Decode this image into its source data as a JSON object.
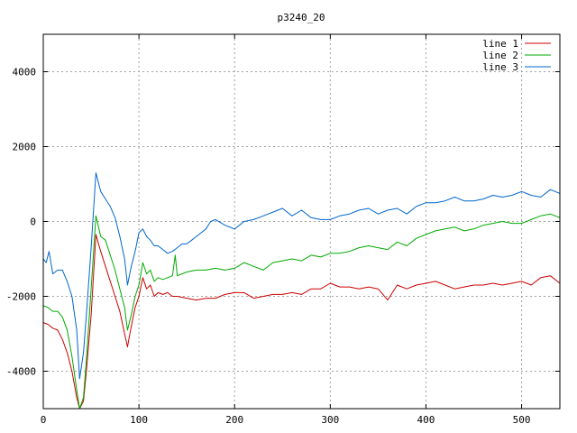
{
  "chart_data": {
    "type": "line",
    "title": "p3240_20",
    "xlabel": "",
    "ylabel": "",
    "xlim": [
      0,
      540
    ],
    "ylim": [
      -5000,
      5000
    ],
    "x_ticks": [
      0,
      100,
      200,
      300,
      400,
      500
    ],
    "y_ticks": [
      -4000,
      -2000,
      0,
      2000,
      4000
    ],
    "x_tick_labels": [
      "0",
      "100",
      "200",
      "300",
      "400",
      "500"
    ],
    "y_tick_labels": [
      "-4000",
      "-2000",
      "0",
      "2000",
      "4000"
    ],
    "grid": true,
    "grid_style": "dotted",
    "legend_position": "top-right",
    "series": [
      {
        "name": "line 1",
        "color": "#cc0000",
        "points": [
          [
            0,
            -2700
          ],
          [
            5,
            -2750
          ],
          [
            10,
            -2850
          ],
          [
            15,
            -2900
          ],
          [
            20,
            -3150
          ],
          [
            25,
            -3500
          ],
          [
            30,
            -4000
          ],
          [
            35,
            -4700
          ],
          [
            38,
            -5000
          ],
          [
            42,
            -4800
          ],
          [
            45,
            -4000
          ],
          [
            50,
            -2500
          ],
          [
            55,
            -350
          ],
          [
            60,
            -800
          ],
          [
            65,
            -1200
          ],
          [
            70,
            -1600
          ],
          [
            75,
            -2000
          ],
          [
            80,
            -2400
          ],
          [
            85,
            -3000
          ],
          [
            88,
            -3350
          ],
          [
            92,
            -2800
          ],
          [
            96,
            -2300
          ],
          [
            100,
            -2000
          ],
          [
            104,
            -1500
          ],
          [
            108,
            -1800
          ],
          [
            112,
            -1700
          ],
          [
            116,
            -2000
          ],
          [
            120,
            -1900
          ],
          [
            125,
            -1950
          ],
          [
            130,
            -1900
          ],
          [
            135,
            -2000
          ],
          [
            140,
            -2000
          ],
          [
            150,
            -2050
          ],
          [
            160,
            -2100
          ],
          [
            170,
            -2050
          ],
          [
            180,
            -2050
          ],
          [
            190,
            -1950
          ],
          [
            200,
            -1900
          ],
          [
            210,
            -1900
          ],
          [
            220,
            -2050
          ],
          [
            230,
            -2000
          ],
          [
            240,
            -1950
          ],
          [
            250,
            -1950
          ],
          [
            260,
            -1900
          ],
          [
            270,
            -1950
          ],
          [
            280,
            -1800
          ],
          [
            290,
            -1800
          ],
          [
            300,
            -1650
          ],
          [
            310,
            -1750
          ],
          [
            320,
            -1750
          ],
          [
            330,
            -1800
          ],
          [
            340,
            -1750
          ],
          [
            350,
            -1800
          ],
          [
            360,
            -2100
          ],
          [
            370,
            -1700
          ],
          [
            380,
            -1800
          ],
          [
            390,
            -1700
          ],
          [
            400,
            -1650
          ],
          [
            410,
            -1600
          ],
          [
            420,
            -1700
          ],
          [
            430,
            -1800
          ],
          [
            440,
            -1750
          ],
          [
            450,
            -1700
          ],
          [
            460,
            -1700
          ],
          [
            470,
            -1650
          ],
          [
            480,
            -1700
          ],
          [
            490,
            -1650
          ],
          [
            500,
            -1600
          ],
          [
            510,
            -1700
          ],
          [
            520,
            -1500
          ],
          [
            530,
            -1450
          ],
          [
            540,
            -1650
          ]
        ]
      },
      {
        "name": "line 2",
        "color": "#00aa00",
        "points": [
          [
            0,
            -2250
          ],
          [
            5,
            -2300
          ],
          [
            10,
            -2400
          ],
          [
            15,
            -2400
          ],
          [
            20,
            -2550
          ],
          [
            25,
            -2900
          ],
          [
            30,
            -3600
          ],
          [
            35,
            -4500
          ],
          [
            38,
            -5000
          ],
          [
            42,
            -4700
          ],
          [
            45,
            -3700
          ],
          [
            50,
            -1800
          ],
          [
            55,
            150
          ],
          [
            60,
            -400
          ],
          [
            65,
            -500
          ],
          [
            70,
            -900
          ],
          [
            75,
            -1300
          ],
          [
            80,
            -1800
          ],
          [
            85,
            -2300
          ],
          [
            88,
            -2900
          ],
          [
            92,
            -2500
          ],
          [
            96,
            -2000
          ],
          [
            100,
            -1700
          ],
          [
            104,
            -1100
          ],
          [
            108,
            -1400
          ],
          [
            112,
            -1300
          ],
          [
            116,
            -1600
          ],
          [
            120,
            -1500
          ],
          [
            125,
            -1550
          ],
          [
            130,
            -1500
          ],
          [
            135,
            -1450
          ],
          [
            138,
            -900
          ],
          [
            140,
            -1450
          ],
          [
            150,
            -1350
          ],
          [
            160,
            -1300
          ],
          [
            170,
            -1300
          ],
          [
            180,
            -1250
          ],
          [
            190,
            -1300
          ],
          [
            200,
            -1250
          ],
          [
            210,
            -1100
          ],
          [
            220,
            -1200
          ],
          [
            230,
            -1300
          ],
          [
            240,
            -1100
          ],
          [
            250,
            -1050
          ],
          [
            260,
            -1000
          ],
          [
            270,
            -1050
          ],
          [
            280,
            -900
          ],
          [
            290,
            -950
          ],
          [
            300,
            -850
          ],
          [
            310,
            -850
          ],
          [
            320,
            -800
          ],
          [
            330,
            -700
          ],
          [
            340,
            -650
          ],
          [
            350,
            -700
          ],
          [
            360,
            -750
          ],
          [
            370,
            -550
          ],
          [
            380,
            -650
          ],
          [
            390,
            -450
          ],
          [
            400,
            -350
          ],
          [
            410,
            -250
          ],
          [
            420,
            -200
          ],
          [
            430,
            -150
          ],
          [
            440,
            -250
          ],
          [
            450,
            -200
          ],
          [
            460,
            -100
          ],
          [
            470,
            -50
          ],
          [
            480,
            0
          ],
          [
            490,
            -50
          ],
          [
            500,
            -50
          ],
          [
            510,
            50
          ],
          [
            520,
            150
          ],
          [
            530,
            200
          ],
          [
            540,
            100
          ]
        ]
      },
      {
        "name": "line 3",
        "color": "#0066cc",
        "points": [
          [
            0,
            -1000
          ],
          [
            3,
            -1100
          ],
          [
            6,
            -800
          ],
          [
            10,
            -1400
          ],
          [
            15,
            -1300
          ],
          [
            20,
            -1300
          ],
          [
            25,
            -1600
          ],
          [
            30,
            -2000
          ],
          [
            35,
            -2900
          ],
          [
            38,
            -4200
          ],
          [
            42,
            -3500
          ],
          [
            45,
            -2500
          ],
          [
            50,
            -700
          ],
          [
            55,
            1300
          ],
          [
            60,
            800
          ],
          [
            65,
            600
          ],
          [
            70,
            400
          ],
          [
            75,
            100
          ],
          [
            80,
            -400
          ],
          [
            85,
            -1000
          ],
          [
            88,
            -1700
          ],
          [
            92,
            -1200
          ],
          [
            96,
            -800
          ],
          [
            100,
            -300
          ],
          [
            104,
            -200
          ],
          [
            108,
            -400
          ],
          [
            112,
            -500
          ],
          [
            116,
            -650
          ],
          [
            120,
            -650
          ],
          [
            125,
            -750
          ],
          [
            130,
            -850
          ],
          [
            135,
            -800
          ],
          [
            140,
            -700
          ],
          [
            145,
            -600
          ],
          [
            150,
            -600
          ],
          [
            155,
            -500
          ],
          [
            160,
            -400
          ],
          [
            165,
            -300
          ],
          [
            170,
            -200
          ],
          [
            175,
            0
          ],
          [
            180,
            50
          ],
          [
            190,
            -100
          ],
          [
            200,
            -200
          ],
          [
            210,
            0
          ],
          [
            220,
            50
          ],
          [
            230,
            150
          ],
          [
            240,
            250
          ],
          [
            250,
            350
          ],
          [
            260,
            150
          ],
          [
            270,
            300
          ],
          [
            280,
            100
          ],
          [
            290,
            50
          ],
          [
            300,
            50
          ],
          [
            310,
            150
          ],
          [
            320,
            200
          ],
          [
            330,
            300
          ],
          [
            340,
            350
          ],
          [
            350,
            200
          ],
          [
            360,
            300
          ],
          [
            370,
            350
          ],
          [
            380,
            200
          ],
          [
            390,
            400
          ],
          [
            400,
            500
          ],
          [
            410,
            500
          ],
          [
            420,
            550
          ],
          [
            430,
            650
          ],
          [
            440,
            550
          ],
          [
            450,
            550
          ],
          [
            460,
            600
          ],
          [
            470,
            700
          ],
          [
            480,
            650
          ],
          [
            490,
            700
          ],
          [
            500,
            800
          ],
          [
            510,
            700
          ],
          [
            520,
            650
          ],
          [
            530,
            850
          ],
          [
            540,
            750
          ]
        ]
      }
    ]
  }
}
